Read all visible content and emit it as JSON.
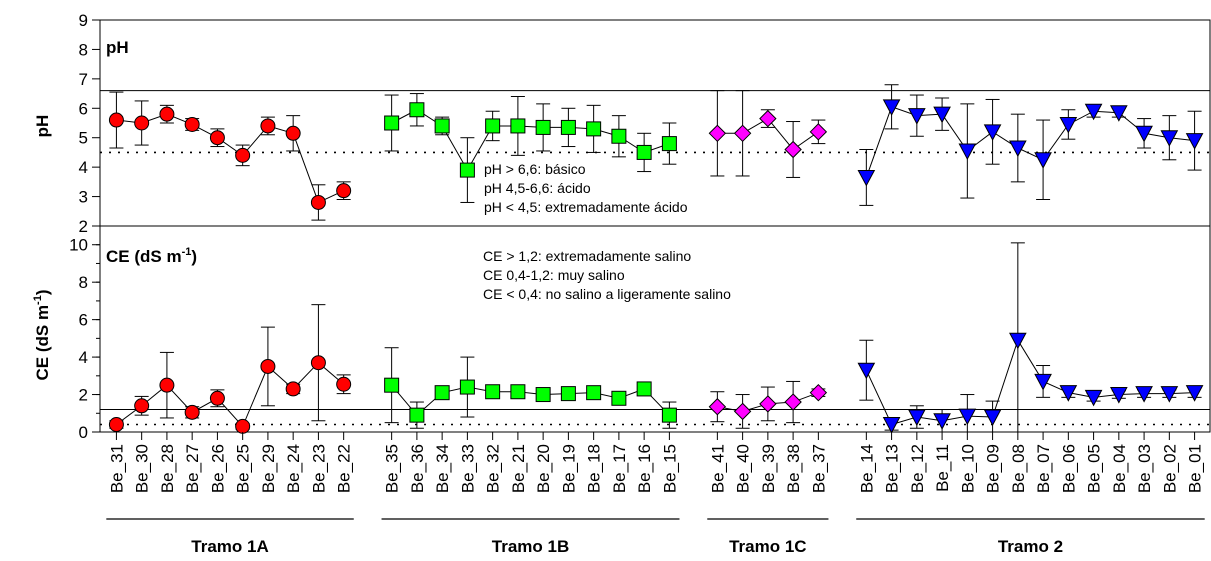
{
  "chart_data": [
    {
      "type": "scatter",
      "panel": "ph",
      "panel_label": "pH",
      "ylabel": "pH",
      "ylim": [
        2,
        9
      ],
      "yticks": [
        "2",
        "3",
        "4",
        "5",
        "6",
        "7",
        "8",
        "9"
      ],
      "thresholds": [
        {
          "value": 6.6,
          "style": "solid"
        },
        {
          "value": 4.5,
          "style": "dotted"
        }
      ],
      "annotations": [
        "pH > 6,6: básico",
        "pH 4,5-6,6: ácido",
        "pH < 4,5: extremadamente ácido"
      ],
      "series": [
        {
          "group": "Tramo 1A",
          "marker": "circle",
          "color": "#ff0000",
          "y": [
            5.6,
            5.5,
            5.8,
            5.45,
            5.0,
            4.4,
            5.4,
            5.15,
            2.8,
            3.2
          ],
          "err": [
            0.95,
            0.75,
            0.3,
            0.2,
            0.3,
            0.35,
            0.3,
            0.6,
            0.6,
            0.3
          ]
        },
        {
          "group": "Tramo 1B",
          "marker": "square",
          "color": "#00ff00",
          "y": [
            5.5,
            5.95,
            5.4,
            3.9,
            5.4,
            5.4,
            5.35,
            5.35,
            5.3,
            5.05,
            4.5,
            4.8
          ],
          "err": [
            0.95,
            0.55,
            0.3,
            1.1,
            0.5,
            1.0,
            0.8,
            0.65,
            0.8,
            0.7,
            0.65,
            0.7
          ]
        },
        {
          "group": "Tramo 1C",
          "marker": "diamond",
          "color": "#ff00ff",
          "y": [
            5.15,
            5.15,
            5.65,
            4.6,
            5.2
          ],
          "err": [
            1.45,
            1.45,
            0.3,
            0.95,
            0.4
          ]
        },
        {
          "group": "Tramo 2",
          "marker": "triangle-down",
          "color": "#0000ff",
          "y": [
            3.65,
            6.05,
            5.75,
            5.8,
            4.55,
            5.2,
            4.65,
            4.25,
            5.45,
            5.9,
            5.85,
            5.15,
            5.0,
            4.9
          ],
          "err": [
            0.95,
            0.75,
            0.7,
            0.55,
            1.6,
            1.1,
            1.15,
            1.35,
            0.5,
            0.2,
            0.15,
            0.5,
            0.75,
            1.0
          ]
        }
      ]
    },
    {
      "type": "scatter",
      "panel": "ce",
      "panel_label_main": "CE (dS m",
      "panel_label_sup": "-1",
      "panel_label_close": ")",
      "ylabel_main": "CE (dS m",
      "ylabel_sup": "-1",
      "ylabel_close": ")",
      "ylim": [
        0,
        11
      ],
      "yticks": [
        "0",
        "2",
        "4",
        "6",
        "8",
        "10"
      ],
      "thresholds": [
        {
          "value": 1.2,
          "style": "solid"
        },
        {
          "value": 0.4,
          "style": "dotted"
        }
      ],
      "annotations": [
        "CE > 1,2: extremadamente salino",
        "CE 0,4-1,2: muy salino",
        "CE < 0,4: no salino a ligeramente salino"
      ],
      "series": [
        {
          "group": "Tramo 1A",
          "marker": "circle",
          "color": "#ff0000",
          "y": [
            0.4,
            1.4,
            2.5,
            1.05,
            1.8,
            0.3,
            3.5,
            2.3,
            3.7,
            2.55
          ],
          "err": [
            0.2,
            0.5,
            1.75,
            0.3,
            0.45,
            0.15,
            2.1,
            0.25,
            3.1,
            0.5
          ]
        },
        {
          "group": "Tramo 1B",
          "marker": "square",
          "color": "#00ff00",
          "y": [
            2.5,
            0.9,
            2.1,
            2.4,
            2.15,
            2.15,
            2.0,
            2.05,
            2.1,
            1.8,
            2.3,
            0.9
          ],
          "err": [
            2.0,
            0.7,
            0.2,
            1.6,
            0.2,
            0.2,
            0.2,
            0.2,
            0.2,
            0.25,
            0.2,
            0.7
          ]
        },
        {
          "group": "Tramo 1C",
          "marker": "diamond",
          "color": "#ff00ff",
          "y": [
            1.35,
            1.1,
            1.5,
            1.6,
            2.1
          ],
          "err": [
            0.8,
            0.9,
            0.9,
            1.1,
            0.2
          ]
        },
        {
          "group": "Tramo 2",
          "marker": "triangle-down",
          "color": "#0000ff",
          "y": [
            3.3,
            0.4,
            0.8,
            0.6,
            0.85,
            0.8,
            4.9,
            2.7,
            2.1,
            1.85,
            2.0,
            2.05,
            2.05,
            2.1
          ],
          "err": [
            1.6,
            0.3,
            0.6,
            0.6,
            1.15,
            0.85,
            5.2,
            0.85,
            0.25,
            0.2,
            0.2,
            0.2,
            0.2,
            0.25
          ]
        }
      ]
    }
  ],
  "x_labels": [
    "Be_31",
    "Be_30",
    "Be_28",
    "Be_27",
    "Be_26",
    "Be_25",
    "Be_29",
    "Be_24",
    "Be_23",
    "Be_22",
    "Be_35",
    "Be_36",
    "Be_34",
    "Be_33",
    "Be_32",
    "Be_21",
    "Be_20",
    "Be_19",
    "Be_18",
    "Be_17",
    "Be_16",
    "Be_15",
    "Be_41",
    "Be_40",
    "Be_39",
    "Be_38",
    "Be_37",
    "Be_14",
    "Be_13",
    "Be_12",
    "Be_11",
    "Be_10",
    "Be_09",
    "Be_08",
    "Be_07",
    "Be_06",
    "Be_05",
    "Be_04",
    "Be_03",
    "Be_02",
    "Be_01"
  ],
  "groups": [
    {
      "label": "Tramo 1A",
      "count": 10
    },
    {
      "label": "Tramo 1B",
      "count": 12
    },
    {
      "label": "Tramo 1C",
      "count": 5
    },
    {
      "label": "Tramo 2",
      "count": 14
    }
  ]
}
